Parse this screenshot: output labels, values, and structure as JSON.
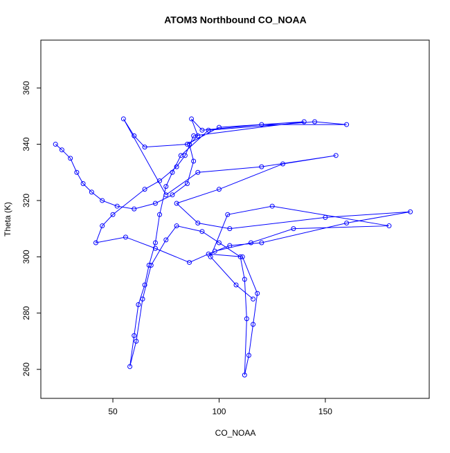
{
  "chart_data": {
    "type": "line",
    "title": "ATOM3 Northbound CO_NOAA",
    "x_label": "CO_NOAA",
    "y_label": "Theta (K)",
    "color": "#0000ff",
    "markers": true,
    "xlim": [
      16.1,
      198.9
    ],
    "ylim": [
      249.7,
      377.0
    ],
    "xticks": [
      50,
      100,
      150
    ],
    "yticks": [
      260,
      280,
      300,
      320,
      340,
      360
    ],
    "x": [
      23,
      26,
      30,
      33,
      36,
      40,
      45,
      52,
      60,
      70,
      78,
      85,
      88,
      86,
      90,
      87,
      92,
      120,
      160,
      145,
      95,
      82,
      78,
      75,
      72,
      70,
      67,
      65,
      62,
      60,
      58,
      61,
      64,
      68,
      75,
      80,
      92,
      100,
      110,
      112,
      113,
      112,
      114,
      116,
      118,
      111,
      95,
      105,
      120,
      160,
      190,
      150,
      105,
      90,
      80,
      100,
      130,
      155,
      120,
      90,
      75,
      55,
      60,
      65,
      85,
      100,
      140,
      88,
      84,
      80,
      72,
      65,
      50,
      45,
      42,
      56,
      70,
      86,
      98,
      115,
      135,
      180,
      125,
      104,
      96,
      108,
      116
    ],
    "y": [
      340,
      338,
      335,
      330,
      326,
      323,
      320,
      318,
      317,
      319,
      322,
      326,
      334,
      340,
      343,
      349,
      345,
      347,
      347,
      348,
      345,
      336,
      330,
      325,
      315,
      305,
      297,
      290,
      283,
      272,
      261,
      270,
      285,
      297,
      306,
      311,
      309,
      305,
      300,
      292,
      278,
      258,
      265,
      276,
      287,
      300,
      301,
      304,
      305,
      312,
      316,
      314,
      310,
      312,
      319,
      324,
      333,
      336,
      332,
      330,
      322,
      349,
      343,
      339,
      340,
      346,
      348,
      343,
      336,
      332,
      327,
      324,
      315,
      311,
      305,
      307,
      303,
      298,
      302,
      305,
      310,
      311,
      318,
      315,
      300,
      290,
      285
    ]
  }
}
